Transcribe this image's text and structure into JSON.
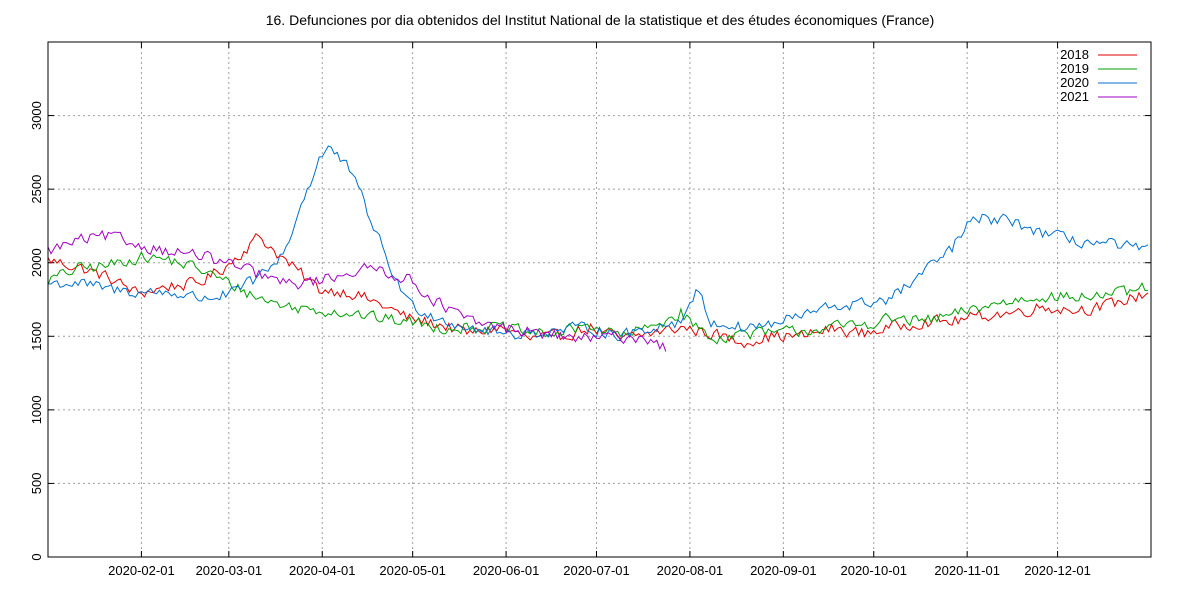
{
  "chart_data": {
    "type": "line",
    "title": "16. Defunciones por dia obtenidos del Institut National de la statistique et des études économiques (France)",
    "xlabel": "",
    "ylabel": "",
    "x_range_days": [
      0,
      366
    ],
    "ylim": [
      0,
      3500
    ],
    "grid": true,
    "legend_position": "top-right",
    "y_ticks": [
      0,
      500,
      1000,
      1500,
      2000,
      2500,
      3000
    ],
    "x_ticks": [
      {
        "label": "2020-02-01",
        "day": 31
      },
      {
        "label": "2020-03-01",
        "day": 60
      },
      {
        "label": "2020-04-01",
        "day": 91
      },
      {
        "label": "2020-05-01",
        "day": 121
      },
      {
        "label": "2020-06-01",
        "day": 152
      },
      {
        "label": "2020-07-01",
        "day": 182
      },
      {
        "label": "2020-08-01",
        "day": 213
      },
      {
        "label": "2020-09-01",
        "day": 244
      },
      {
        "label": "2020-10-01",
        "day": 274
      },
      {
        "label": "2020-11-01",
        "day": 305
      },
      {
        "label": "2020-12-01",
        "day": 335
      }
    ],
    "series": [
      {
        "name": "2018",
        "color": "#e00000",
        "days": [
          0,
          10,
          20,
          30,
          40,
          50,
          60,
          70,
          80,
          90,
          100,
          110,
          120,
          130,
          140,
          150,
          160,
          170,
          180,
          190,
          200,
          210,
          220,
          230,
          240,
          250,
          260,
          270,
          280,
          290,
          300,
          310,
          320,
          330,
          340,
          350,
          360,
          365
        ],
        "values": [
          2020,
          1970,
          1900,
          1790,
          1840,
          1860,
          1990,
          2180,
          1990,
          1820,
          1800,
          1720,
          1620,
          1580,
          1520,
          1560,
          1480,
          1500,
          1560,
          1480,
          1520,
          1560,
          1520,
          1460,
          1500,
          1500,
          1550,
          1520,
          1560,
          1600,
          1600,
          1640,
          1660,
          1700,
          1680,
          1700,
          1760,
          1800
        ]
      },
      {
        "name": "2019",
        "color": "#00a000",
        "days": [
          0,
          10,
          20,
          30,
          40,
          50,
          60,
          70,
          80,
          90,
          100,
          110,
          120,
          130,
          140,
          150,
          160,
          170,
          180,
          190,
          200,
          210,
          220,
          230,
          240,
          250,
          260,
          270,
          280,
          290,
          300,
          310,
          320,
          330,
          340,
          350,
          360,
          365
        ],
        "values": [
          1880,
          1960,
          1980,
          2040,
          2020,
          1960,
          1860,
          1760,
          1700,
          1680,
          1660,
          1620,
          1600,
          1560,
          1560,
          1560,
          1520,
          1520,
          1580,
          1500,
          1560,
          1660,
          1480,
          1520,
          1520,
          1540,
          1560,
          1580,
          1620,
          1600,
          1640,
          1700,
          1740,
          1780,
          1760,
          1780,
          1800,
          1840
        ]
      },
      {
        "name": "2020",
        "color": "#0070d0",
        "days": [
          0,
          10,
          20,
          30,
          40,
          50,
          60,
          65,
          70,
          75,
          80,
          85,
          90,
          93,
          96,
          100,
          105,
          110,
          115,
          120,
          130,
          140,
          150,
          160,
          170,
          180,
          190,
          200,
          210,
          215,
          220,
          230,
          240,
          250,
          260,
          270,
          280,
          290,
          300,
          305,
          310,
          320,
          330,
          340,
          350,
          360,
          365
        ],
        "values": [
          1860,
          1860,
          1820,
          1800,
          1800,
          1760,
          1780,
          1840,
          1900,
          1980,
          2150,
          2450,
          2700,
          2790,
          2720,
          2630,
          2400,
          2150,
          1900,
          1720,
          1620,
          1560,
          1520,
          1520,
          1540,
          1560,
          1500,
          1560,
          1600,
          1820,
          1600,
          1560,
          1580,
          1640,
          1700,
          1720,
          1760,
          1920,
          2100,
          2250,
          2300,
          2280,
          2200,
          2150,
          2130,
          2100,
          2080
        ]
      },
      {
        "name": "2021",
        "color": "#a000c0",
        "days": [
          0,
          10,
          20,
          30,
          40,
          50,
          60,
          70,
          80,
          90,
          100,
          110,
          120,
          130,
          140,
          150,
          160,
          170,
          180,
          190,
          200,
          205
        ],
        "values": [
          2080,
          2150,
          2180,
          2120,
          2080,
          2050,
          1990,
          1920,
          1850,
          1880,
          1940,
          1960,
          1880,
          1720,
          1600,
          1560,
          1530,
          1500,
          1480,
          1500,
          1480,
          1420
        ]
      }
    ]
  }
}
